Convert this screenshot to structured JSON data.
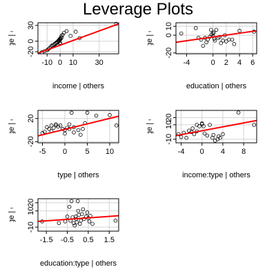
{
  "title": "Leverage Plots",
  "chart_data": [
    {
      "type": "scatter",
      "xlabel": "income | others",
      "ylabel": "prestige | others",
      "xlim": [
        -17,
        45
      ],
      "ylim": [
        -24,
        35
      ],
      "xticks": [
        -10,
        0,
        10,
        30
      ],
      "yticks": [
        -20,
        0,
        30
      ],
      "grid": true,
      "fit": [
        [
          -17,
          -23
        ],
        [
          45,
          33
        ]
      ],
      "points": [
        [
          -14,
          -21
        ],
        [
          -12,
          -19
        ],
        [
          -10,
          -17
        ],
        [
          -9,
          -15
        ],
        [
          -8,
          -13
        ],
        [
          -7,
          -10
        ],
        [
          -6,
          -8
        ],
        [
          -6,
          -9
        ],
        [
          -5,
          -7
        ],
        [
          -4,
          -5
        ],
        [
          -4,
          -6
        ],
        [
          -3,
          -4
        ],
        [
          -3,
          -3
        ],
        [
          -2,
          -2
        ],
        [
          -2,
          -1
        ],
        [
          -1,
          0
        ],
        [
          -1,
          1
        ],
        [
          -1,
          2
        ],
        [
          0,
          3
        ],
        [
          0,
          4
        ],
        [
          0,
          -5
        ],
        [
          0,
          -3
        ],
        [
          0,
          5
        ],
        [
          1,
          6
        ],
        [
          1,
          7
        ],
        [
          1,
          10
        ],
        [
          2,
          12
        ],
        [
          3,
          16
        ],
        [
          5,
          19
        ],
        [
          8,
          10
        ],
        [
          12,
          18
        ],
        [
          15,
          6
        ],
        [
          43,
          33
        ]
      ]
    },
    {
      "type": "scatter",
      "xlabel": "education | others",
      "ylabel": "prestige | others",
      "xlim": [
        -5.6,
        6.6
      ],
      "ylim": [
        -21,
        14
      ],
      "xticks": [
        -4,
        0,
        2,
        4,
        6
      ],
      "yticks": [
        -20,
        0,
        10
      ],
      "grid": true,
      "fit": [
        [
          -5.6,
          -8
        ],
        [
          6.6,
          5
        ]
      ],
      "points": [
        [
          -4.8,
          2
        ],
        [
          -2.6,
          8
        ],
        [
          -2.2,
          -3
        ],
        [
          -1.8,
          -5
        ],
        [
          -1.5,
          -12
        ],
        [
          -1.2,
          -3
        ],
        [
          -1.0,
          -8
        ],
        [
          -0.8,
          -5
        ],
        [
          -0.5,
          -2
        ],
        [
          -0.3,
          6
        ],
        [
          -0.2,
          1
        ],
        [
          0,
          -1
        ],
        [
          0,
          2
        ],
        [
          0.1,
          3
        ],
        [
          0.2,
          -4
        ],
        [
          0.3,
          -6
        ],
        [
          0.5,
          6
        ],
        [
          0.8,
          -3
        ],
        [
          1.0,
          -2
        ],
        [
          1.2,
          -9
        ],
        [
          1.5,
          -6
        ],
        [
          1.8,
          0
        ],
        [
          2.0,
          -7
        ],
        [
          2.4,
          -5
        ],
        [
          2.9,
          -5
        ],
        [
          3.2,
          -10
        ],
        [
          4.0,
          5
        ],
        [
          6.2,
          4
        ]
      ]
    },
    {
      "type": "scatter",
      "xlabel": "type | others",
      "ylabel": "prestige | others",
      "xlim": [
        -6,
        12
      ],
      "ylim": [
        -22,
        34
      ],
      "xticks": [
        -5,
        0,
        5,
        10
      ],
      "yticks": [
        -20,
        20
      ],
      "grid": true,
      "fit": [
        [
          -6,
          -10
        ],
        [
          12,
          24
        ]
      ],
      "points": [
        [
          -5,
          -5
        ],
        [
          -4.5,
          -3
        ],
        [
          -4,
          5
        ],
        [
          -3.5,
          2
        ],
        [
          -3,
          -2
        ],
        [
          -2.5,
          4
        ],
        [
          -2,
          8
        ],
        [
          -1.5,
          6
        ],
        [
          -1,
          8
        ],
        [
          -0.5,
          2
        ],
        [
          0,
          0
        ],
        [
          0,
          -6
        ],
        [
          0.5,
          4
        ],
        [
          1,
          2
        ],
        [
          1,
          10
        ],
        [
          1.5,
          30
        ],
        [
          2,
          5
        ],
        [
          2,
          -4
        ],
        [
          3,
          0
        ],
        [
          3.5,
          -8
        ],
        [
          4,
          2
        ],
        [
          4.5,
          12
        ],
        [
          5,
          30
        ],
        [
          7,
          25
        ],
        [
          10,
          26
        ],
        [
          11.5,
          8
        ],
        [
          -3,
          8
        ],
        [
          -2,
          10
        ]
      ]
    },
    {
      "type": "scatter",
      "xlabel": "income:type | others",
      "ylabel": "prestige | others",
      "xlim": [
        -5,
        10.5
      ],
      "ylim": [
        -15,
        30
      ],
      "xticks": [
        -4,
        0,
        4,
        8
      ],
      "yticks": [
        -10,
        10,
        20
      ],
      "grid": true,
      "fit": [
        [
          -5,
          -5
        ],
        [
          10.5,
          16
        ]
      ],
      "points": [
        [
          -4.5,
          -3
        ],
        [
          -4,
          -7
        ],
        [
          -3.5,
          -1
        ],
        [
          -3,
          -8
        ],
        [
          -2.5,
          2
        ],
        [
          -2,
          0
        ],
        [
          -1.8,
          5
        ],
        [
          -1.5,
          -3
        ],
        [
          -1,
          1
        ],
        [
          -0.5,
          8
        ],
        [
          0,
          11
        ],
        [
          0.3,
          8
        ],
        [
          0.5,
          -2
        ],
        [
          1,
          -5
        ],
        [
          1.5,
          10
        ],
        [
          2,
          -8
        ],
        [
          2.2,
          -4
        ],
        [
          2.5,
          -12
        ],
        [
          3,
          -10
        ],
        [
          3.2,
          -6
        ],
        [
          3.5,
          -8
        ],
        [
          4,
          -3
        ],
        [
          7,
          27
        ],
        [
          10,
          10
        ],
        [
          -1,
          10
        ],
        [
          0,
          12
        ]
      ]
    },
    {
      "type": "scatter",
      "xlabel": "education:type | others",
      "ylabel": "prestige | others",
      "xlim": [
        -1.9,
        1.95
      ],
      "ylim": [
        -15,
        25
      ],
      "xticks": [
        -1.5,
        -0.5,
        0.5,
        1.5
      ],
      "yticks": [
        -10,
        10,
        20
      ],
      "grid": true,
      "fit": [
        [
          -1.9,
          -3
        ],
        [
          1.95,
          4
        ]
      ],
      "points": [
        [
          -1.7,
          -3
        ],
        [
          -0.9,
          -5
        ],
        [
          -0.6,
          -3
        ],
        [
          -0.5,
          3
        ],
        [
          -0.4,
          15
        ],
        [
          -0.35,
          -2
        ],
        [
          -0.3,
          22
        ],
        [
          -0.25,
          2
        ],
        [
          -0.2,
          -5
        ],
        [
          -0.15,
          -8
        ],
        [
          -0.1,
          3
        ],
        [
          -0.08,
          0
        ],
        [
          -0.05,
          -4
        ],
        [
          0,
          22
        ],
        [
          0.02,
          10
        ],
        [
          0.05,
          5
        ],
        [
          0.1,
          -6
        ],
        [
          0.15,
          -2
        ],
        [
          0.2,
          6
        ],
        [
          0.25,
          12
        ],
        [
          0.3,
          0
        ],
        [
          0.4,
          3
        ],
        [
          0.45,
          8
        ],
        [
          0.5,
          1
        ],
        [
          0.55,
          -3
        ],
        [
          0.6,
          4
        ],
        [
          0.7,
          -6
        ],
        [
          1.8,
          -2
        ]
      ]
    }
  ]
}
